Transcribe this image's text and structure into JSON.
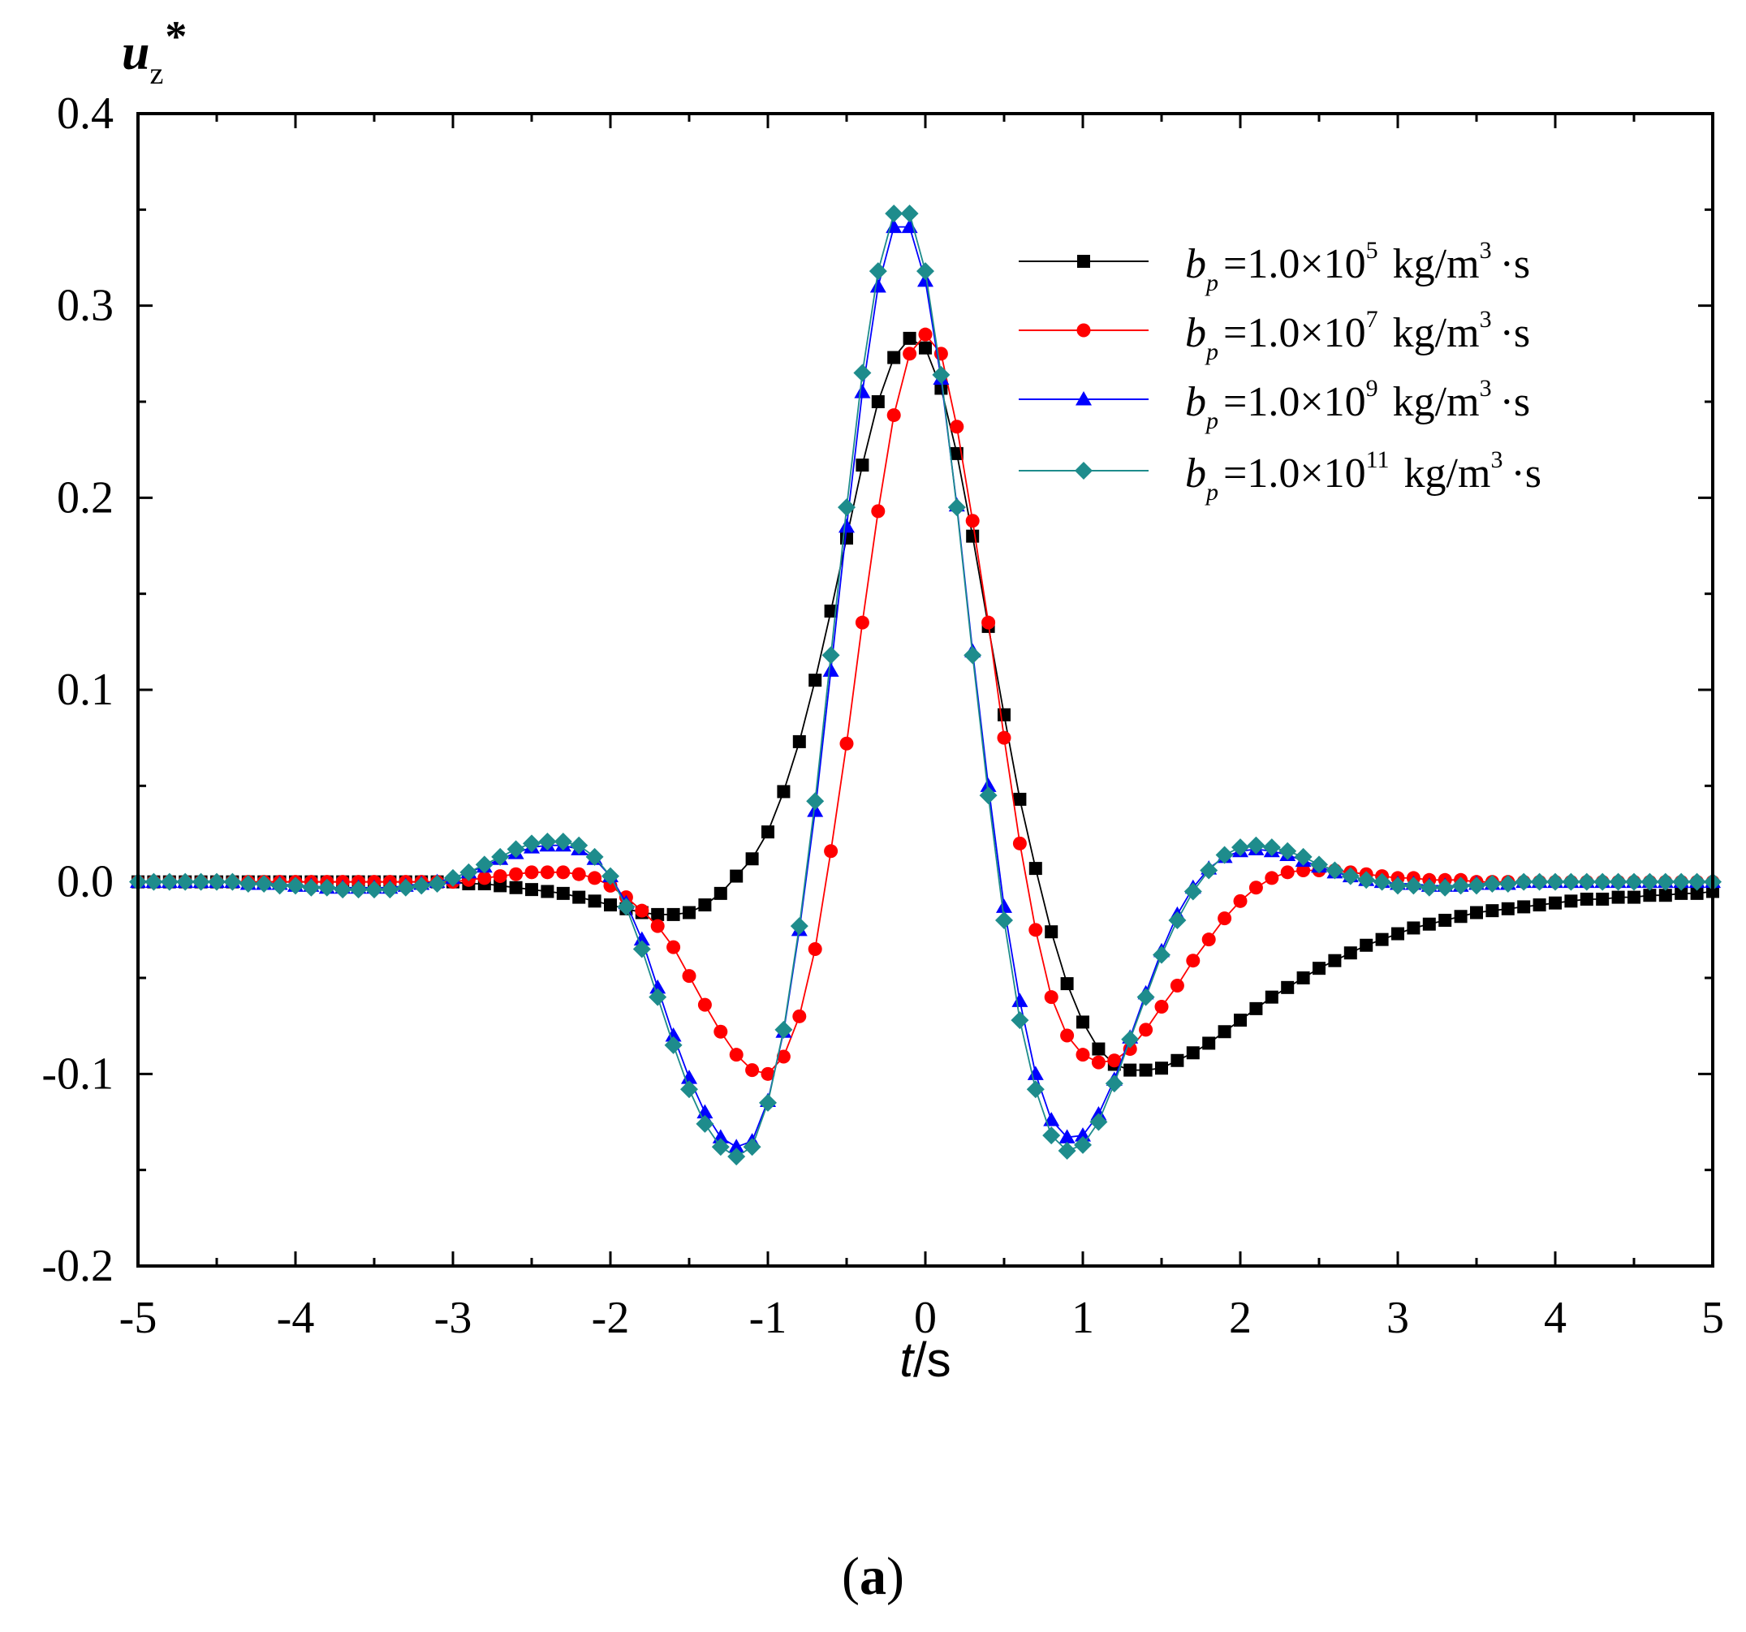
{
  "chart_data": {
    "type": "line",
    "title": "",
    "ylabel_main": "u",
    "ylabel_sub": "z",
    "ylabel_sup": "*",
    "xlabel_italic": "t",
    "xlabel_rest": "/s",
    "xlim": [
      -5,
      5
    ],
    "ylim": [
      -0.2,
      0.4
    ],
    "x_ticks": [
      -5,
      -4,
      -3,
      -2,
      -1,
      0,
      1,
      2,
      3,
      4,
      5
    ],
    "x_tick_labels": [
      "-5",
      "-4",
      "-3",
      "-2",
      "-1",
      "0",
      "1",
      "2",
      "3",
      "4",
      "5"
    ],
    "y_ticks": [
      -0.2,
      -0.1,
      0.0,
      0.1,
      0.2,
      0.3,
      0.4
    ],
    "y_tick_labels": [
      "-0.2",
      "-0.1",
      "0.0",
      "0.1",
      "0.2",
      "0.3",
      "0.4"
    ],
    "grid": false,
    "legend_position": "top-right",
    "series": [
      {
        "name": "bp=1.0×10^5 kg/m^3·s",
        "legend_base": "b",
        "legend_sub": "p",
        "legend_eq": "=1.0×10",
        "legend_exp": "5",
        "legend_unit": "kg/m",
        "legend_unit_exp": "3",
        "legend_tail": "·s",
        "color": "#000000",
        "marker": "square",
        "x": [
          -5,
          -4.9,
          -4.8,
          -4.7,
          -4.6,
          -4.5,
          -4.4,
          -4.3,
          -4.2,
          -4.1,
          -4,
          -3.9,
          -3.8,
          -3.7,
          -3.6,
          -3.5,
          -3.4,
          -3.3,
          -3.2,
          -3.1,
          -3,
          -2.9,
          -2.8,
          -2.7,
          -2.6,
          -2.5,
          -2.4,
          -2.3,
          -2.2,
          -2.1,
          -2,
          -1.9,
          -1.8,
          -1.7,
          -1.6,
          -1.5,
          -1.4,
          -1.3,
          -1.2,
          -1.1,
          -1,
          -0.9,
          -0.8,
          -0.7,
          -0.6,
          -0.5,
          -0.4,
          -0.3,
          -0.2,
          -0.1,
          0,
          0.1,
          0.2,
          0.3,
          0.4,
          0.5,
          0.6,
          0.7,
          0.8,
          0.9,
          1,
          1.1,
          1.2,
          1.3,
          1.4,
          1.5,
          1.6,
          1.7,
          1.8,
          1.9,
          2,
          2.1,
          2.2,
          2.3,
          2.4,
          2.5,
          2.6,
          2.7,
          2.8,
          2.9,
          3,
          3.1,
          3.2,
          3.3,
          3.4,
          3.5,
          3.6,
          3.7,
          3.8,
          3.9,
          4,
          4.1,
          4.2,
          4.3,
          4.4,
          4.5,
          4.6,
          4.7,
          4.8,
          4.9,
          5
        ],
        "y": [
          0,
          0,
          0,
          0,
          0,
          0,
          0,
          0,
          0,
          0,
          0,
          0,
          0,
          0,
          0,
          0,
          0,
          0,
          0,
          0,
          0,
          -0.001,
          -0.001,
          -0.002,
          -0.003,
          -0.004,
          -0.005,
          -0.006,
          -0.008,
          -0.01,
          -0.012,
          -0.014,
          -0.016,
          -0.017,
          -0.017,
          -0.016,
          -0.012,
          -0.006,
          0.003,
          0.012,
          0.026,
          0.047,
          0.073,
          0.105,
          0.141,
          0.179,
          0.217,
          0.25,
          0.273,
          0.283,
          0.278,
          0.257,
          0.223,
          0.18,
          0.133,
          0.087,
          0.043,
          0.007,
          -0.026,
          -0.053,
          -0.073,
          -0.087,
          -0.095,
          -0.098,
          -0.098,
          -0.097,
          -0.093,
          -0.089,
          -0.084,
          -0.078,
          -0.072,
          -0.066,
          -0.06,
          -0.055,
          -0.05,
          -0.045,
          -0.041,
          -0.037,
          -0.033,
          -0.03,
          -0.027,
          -0.024,
          -0.022,
          -0.02,
          -0.018,
          -0.016,
          -0.015,
          -0.014,
          -0.013,
          -0.012,
          -0.011,
          -0.01,
          -0.009,
          -0.009,
          -0.008,
          -0.008,
          -0.007,
          -0.007,
          -0.006,
          -0.006,
          -0.005
        ]
      },
      {
        "name": "bp=1.0×10^7 kg/m^3·s",
        "legend_base": "b",
        "legend_sub": "p",
        "legend_eq": "=1.0×10",
        "legend_exp": "7",
        "legend_unit": "kg/m",
        "legend_unit_exp": "3",
        "legend_tail": "·s",
        "color": "#ff0000",
        "marker": "circle",
        "x": [
          -5,
          -4.9,
          -4.8,
          -4.7,
          -4.6,
          -4.5,
          -4.4,
          -4.3,
          -4.2,
          -4.1,
          -4,
          -3.9,
          -3.8,
          -3.7,
          -3.6,
          -3.5,
          -3.4,
          -3.3,
          -3.2,
          -3.1,
          -3,
          -2.9,
          -2.8,
          -2.7,
          -2.6,
          -2.5,
          -2.4,
          -2.3,
          -2.2,
          -2.1,
          -2,
          -1.9,
          -1.8,
          -1.7,
          -1.6,
          -1.5,
          -1.4,
          -1.3,
          -1.2,
          -1.1,
          -1,
          -0.9,
          -0.8,
          -0.7,
          -0.6,
          -0.5,
          -0.4,
          -0.3,
          -0.2,
          -0.1,
          0,
          0.1,
          0.2,
          0.3,
          0.4,
          0.5,
          0.6,
          0.7,
          0.8,
          0.9,
          1,
          1.1,
          1.2,
          1.3,
          1.4,
          1.5,
          1.6,
          1.7,
          1.8,
          1.9,
          2,
          2.1,
          2.2,
          2.3,
          2.4,
          2.5,
          2.6,
          2.7,
          2.8,
          2.9,
          3,
          3.1,
          3.2,
          3.3,
          3.4,
          3.5,
          3.6,
          3.7,
          3.8,
          3.9,
          4,
          4.1,
          4.2,
          4.3,
          4.4,
          4.5,
          4.6,
          4.7,
          4.8,
          4.9,
          5
        ],
        "y": [
          0,
          0,
          0,
          0,
          0,
          0,
          0,
          0,
          0,
          0,
          0,
          0,
          0,
          0,
          0,
          0,
          0,
          0,
          0,
          0,
          0,
          0.001,
          0.002,
          0.003,
          0.004,
          0.005,
          0.005,
          0.005,
          0.004,
          0.002,
          -0.002,
          -0.008,
          -0.015,
          -0.023,
          -0.034,
          -0.049,
          -0.064,
          -0.078,
          -0.09,
          -0.098,
          -0.1,
          -0.091,
          -0.07,
          -0.035,
          0.016,
          0.072,
          0.135,
          0.193,
          0.243,
          0.275,
          0.285,
          0.275,
          0.237,
          0.188,
          0.135,
          0.075,
          0.02,
          -0.025,
          -0.06,
          -0.08,
          -0.09,
          -0.094,
          -0.093,
          -0.087,
          -0.077,
          -0.065,
          -0.054,
          -0.041,
          -0.03,
          -0.019,
          -0.01,
          -0.003,
          0.002,
          0.005,
          0.006,
          0.006,
          0.006,
          0.005,
          0.004,
          0.003,
          0.002,
          0.002,
          0.001,
          0.001,
          0.001,
          0,
          0,
          0,
          0,
          0,
          0,
          0,
          0,
          0,
          0,
          0,
          0,
          0,
          0,
          0,
          0
        ]
      },
      {
        "name": "bp=1.0×10^9 kg/m^3·s",
        "legend_base": "b",
        "legend_sub": "p",
        "legend_eq": "=1.0×10",
        "legend_exp": "9",
        "legend_unit": "kg/m",
        "legend_unit_exp": "3",
        "legend_tail": "·s",
        "color": "#0000ff",
        "marker": "triangle",
        "x": [
          -5,
          -4.9,
          -4.8,
          -4.7,
          -4.6,
          -4.5,
          -4.4,
          -4.3,
          -4.2,
          -4.1,
          -4,
          -3.9,
          -3.8,
          -3.7,
          -3.6,
          -3.5,
          -3.4,
          -3.3,
          -3.2,
          -3.1,
          -3,
          -2.9,
          -2.8,
          -2.7,
          -2.6,
          -2.5,
          -2.4,
          -2.3,
          -2.2,
          -2.1,
          -2,
          -1.9,
          -1.8,
          -1.7,
          -1.6,
          -1.5,
          -1.4,
          -1.3,
          -1.2,
          -1.1,
          -1,
          -0.9,
          -0.8,
          -0.7,
          -0.6,
          -0.5,
          -0.4,
          -0.3,
          -0.2,
          -0.1,
          0,
          0.1,
          0.2,
          0.3,
          0.4,
          0.5,
          0.6,
          0.7,
          0.8,
          0.9,
          1,
          1.1,
          1.2,
          1.3,
          1.4,
          1.5,
          1.6,
          1.7,
          1.8,
          1.9,
          2,
          2.1,
          2.2,
          2.3,
          2.4,
          2.5,
          2.6,
          2.7,
          2.8,
          2.9,
          3,
          3.1,
          3.2,
          3.3,
          3.4,
          3.5,
          3.6,
          3.7,
          3.8,
          3.9,
          4,
          4.1,
          4.2,
          4.3,
          4.4,
          4.5,
          4.6,
          4.7,
          4.8,
          4.9,
          5
        ],
        "y": [
          0,
          0,
          0,
          0,
          0,
          0,
          0,
          -0.001,
          -0.001,
          -0.001,
          -0.002,
          -0.002,
          -0.003,
          -0.003,
          -0.003,
          -0.003,
          -0.003,
          -0.002,
          -0.001,
          0,
          0.002,
          0.005,
          0.008,
          0.012,
          0.015,
          0.018,
          0.019,
          0.019,
          0.017,
          0.012,
          0.003,
          -0.011,
          -0.03,
          -0.055,
          -0.08,
          -0.102,
          -0.12,
          -0.133,
          -0.138,
          -0.135,
          -0.114,
          -0.078,
          -0.025,
          0.037,
          0.11,
          0.185,
          0.255,
          0.31,
          0.341,
          0.341,
          0.313,
          0.262,
          0.196,
          0.12,
          0.05,
          -0.013,
          -0.062,
          -0.1,
          -0.124,
          -0.133,
          -0.132,
          -0.121,
          -0.103,
          -0.081,
          -0.058,
          -0.036,
          -0.017,
          -0.003,
          0.007,
          0.013,
          0.016,
          0.017,
          0.016,
          0.014,
          0.011,
          0.008,
          0.005,
          0.003,
          0.001,
          0,
          -0.001,
          -0.001,
          -0.002,
          -0.002,
          -0.002,
          -0.001,
          -0.001,
          -0.001,
          0,
          0,
          0,
          0,
          0,
          0,
          0,
          0,
          0,
          0,
          0,
          0,
          0
        ]
      },
      {
        "name": "bp=1.0×10^11 kg/m^3·s",
        "legend_base": "b",
        "legend_sub": "p",
        "legend_eq": "=1.0×10",
        "legend_exp": "11",
        "legend_unit": "kg/m",
        "legend_unit_exp": "3",
        "legend_tail": "·s",
        "color": "#1e8c8c",
        "marker": "diamond",
        "x": [
          -5,
          -4.9,
          -4.8,
          -4.7,
          -4.6,
          -4.5,
          -4.4,
          -4.3,
          -4.2,
          -4.1,
          -4,
          -3.9,
          -3.8,
          -3.7,
          -3.6,
          -3.5,
          -3.4,
          -3.3,
          -3.2,
          -3.1,
          -3,
          -2.9,
          -2.8,
          -2.7,
          -2.6,
          -2.5,
          -2.4,
          -2.3,
          -2.2,
          -2.1,
          -2,
          -1.9,
          -1.8,
          -1.7,
          -1.6,
          -1.5,
          -1.4,
          -1.3,
          -1.2,
          -1.1,
          -1,
          -0.9,
          -0.8,
          -0.7,
          -0.6,
          -0.5,
          -0.4,
          -0.3,
          -0.2,
          -0.1,
          0,
          0.1,
          0.2,
          0.3,
          0.4,
          0.5,
          0.6,
          0.7,
          0.8,
          0.9,
          1,
          1.1,
          1.2,
          1.3,
          1.4,
          1.5,
          1.6,
          1.7,
          1.8,
          1.9,
          2,
          2.1,
          2.2,
          2.3,
          2.4,
          2.5,
          2.6,
          2.7,
          2.8,
          2.9,
          3,
          3.1,
          3.2,
          3.3,
          3.4,
          3.5,
          3.6,
          3.7,
          3.8,
          3.9,
          4,
          4.1,
          4.2,
          4.3,
          4.4,
          4.5,
          4.6,
          4.7,
          4.8,
          4.9,
          5
        ],
        "y": [
          0,
          0,
          0,
          0,
          0,
          0,
          0,
          -0.001,
          -0.001,
          -0.002,
          -0.002,
          -0.003,
          -0.003,
          -0.004,
          -0.004,
          -0.004,
          -0.004,
          -0.003,
          -0.002,
          -0.001,
          0.002,
          0.005,
          0.009,
          0.013,
          0.017,
          0.02,
          0.021,
          0.021,
          0.019,
          0.013,
          0.003,
          -0.013,
          -0.035,
          -0.06,
          -0.085,
          -0.108,
          -0.126,
          -0.138,
          -0.143,
          -0.138,
          -0.115,
          -0.077,
          -0.023,
          0.042,
          0.118,
          0.195,
          0.265,
          0.318,
          0.348,
          0.348,
          0.318,
          0.264,
          0.195,
          0.118,
          0.045,
          -0.02,
          -0.072,
          -0.108,
          -0.132,
          -0.14,
          -0.137,
          -0.125,
          -0.105,
          -0.082,
          -0.06,
          -0.038,
          -0.02,
          -0.005,
          0.006,
          0.014,
          0.018,
          0.019,
          0.018,
          0.016,
          0.013,
          0.009,
          0.006,
          0.003,
          0.001,
          0,
          -0.002,
          -0.002,
          -0.003,
          -0.003,
          -0.002,
          -0.002,
          -0.001,
          -0.001,
          0,
          0,
          0,
          0,
          0,
          0,
          0,
          0,
          0,
          0,
          0,
          0,
          0
        ]
      }
    ]
  },
  "figure": {
    "panel_label_open": "(",
    "panel_label_letter": "a",
    "panel_label_close": ")"
  }
}
